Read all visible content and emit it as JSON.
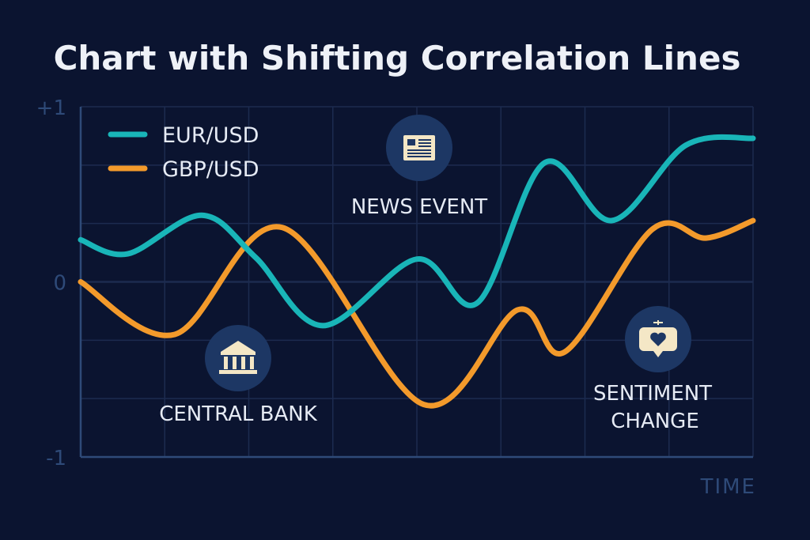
{
  "colors": {
    "background": "#0b1430",
    "grid": "#1c2b4f",
    "axis_text": "#2e4a78",
    "title": "#eef1f7",
    "label": "#e6ebf5",
    "badge": "#1d3764",
    "eur": "#19b5b8",
    "gbp": "#f39a2b"
  },
  "chart_data": {
    "type": "line",
    "title": "Chart with Shifting Correlation Lines",
    "xlabel": "TIME",
    "ylabel": "",
    "ylim": [
      -1,
      1
    ],
    "xlim": [
      0,
      100
    ],
    "yticks": [
      {
        "value": 1,
        "label": "+1"
      },
      {
        "value": 0,
        "label": "0"
      },
      {
        "value": -1,
        "label": "-1"
      }
    ],
    "grid": true,
    "legend_position": "top-left",
    "series": [
      {
        "name": "EUR/USD",
        "color": "#19b5b8",
        "points": [
          [
            0,
            0.24
          ],
          [
            7,
            0.16
          ],
          [
            18,
            0.38
          ],
          [
            26,
            0.14
          ],
          [
            36,
            -0.25
          ],
          [
            50,
            0.13
          ],
          [
            59,
            -0.12
          ],
          [
            69,
            0.68
          ],
          [
            79,
            0.35
          ],
          [
            90,
            0.78
          ],
          [
            100,
            0.82
          ]
        ]
      },
      {
        "name": "GBP/USD",
        "color": "#f39a2b",
        "points": [
          [
            0,
            0.0
          ],
          [
            14,
            -0.3
          ],
          [
            30,
            0.31
          ],
          [
            51,
            -0.7
          ],
          [
            65,
            -0.16
          ],
          [
            72,
            -0.4
          ],
          [
            85,
            0.3
          ],
          [
            93,
            0.25
          ],
          [
            100,
            0.35
          ]
        ]
      }
    ],
    "annotations": [
      {
        "label": "NEWS EVENT",
        "icon": "newspaper-icon",
        "x": 50,
        "y": 0.72
      },
      {
        "label": "CENTRAL BANK",
        "icon": "bank-icon",
        "x": 23,
        "y": -0.47
      },
      {
        "label": "SENTIMENT CHANGE",
        "icon": "heart-speech-icon",
        "x": 86,
        "y": -0.4
      }
    ]
  }
}
